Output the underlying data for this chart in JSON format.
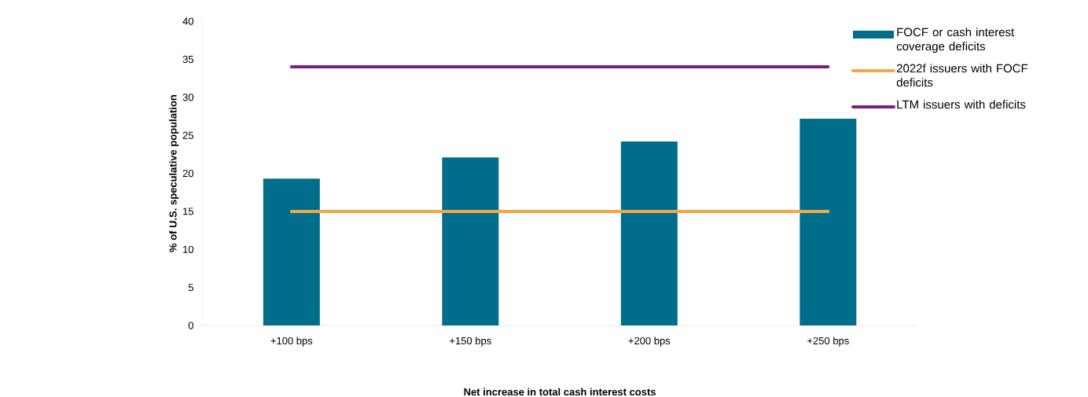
{
  "chart_data": {
    "type": "bar",
    "xlabel": "Net increase in total cash interest costs",
    "ylabel": "% of U.S. speculative population",
    "categories": [
      "+100 bps",
      "+150 bps",
      "+200 bps",
      "+250 bps"
    ],
    "series": [
      {
        "name": "FOCF or cash interest coverage deficits",
        "color": "#006e8a",
        "values": [
          19.3,
          22.1,
          24.2,
          27.2
        ]
      },
      {
        "name": "2022f issuers with FOCF deficits",
        "type": "line",
        "color": "#f0a848",
        "values": [
          15,
          15,
          15,
          15
        ]
      },
      {
        "name": "LTM issuers with deficits",
        "type": "line",
        "color": "#7b1f7e",
        "values": [
          34,
          34,
          34,
          34
        ]
      }
    ],
    "ylim": [
      0,
      40
    ],
    "yticks": [
      0,
      5,
      10,
      15,
      20,
      25,
      30,
      35,
      40
    ],
    "grid": false,
    "legend": "right",
    "marker": "none"
  }
}
